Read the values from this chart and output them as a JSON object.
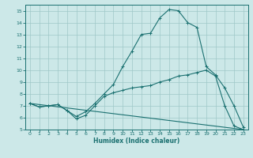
{
  "xlabel": "Humidex (Indice chaleur)",
  "xlim": [
    -0.5,
    23.5
  ],
  "ylim": [
    5,
    15.5
  ],
  "xticks": [
    0,
    1,
    2,
    3,
    4,
    5,
    6,
    7,
    8,
    9,
    10,
    11,
    12,
    13,
    14,
    15,
    16,
    17,
    18,
    19,
    20,
    21,
    22,
    23
  ],
  "yticks": [
    5,
    6,
    7,
    8,
    9,
    10,
    11,
    12,
    13,
    14,
    15
  ],
  "bg_color": "#cce8e8",
  "line_color": "#1a7070",
  "grid_color": "#9fc8c8",
  "line1_x": [
    0,
    1,
    2,
    3,
    4,
    5,
    6,
    7,
    8,
    9,
    10,
    11,
    12,
    13,
    14,
    15,
    16,
    17,
    18,
    19,
    20,
    21,
    22,
    23
  ],
  "line1_y": [
    7.2,
    6.9,
    7.0,
    7.1,
    6.6,
    6.1,
    6.5,
    7.2,
    8.0,
    8.8,
    10.3,
    11.6,
    13.0,
    13.1,
    14.4,
    15.1,
    15.0,
    14.0,
    13.6,
    10.3,
    9.6,
    8.5,
    7.0,
    5.2
  ],
  "line2_x": [
    0,
    1,
    2,
    3,
    4,
    5,
    6,
    7,
    8,
    9,
    10,
    11,
    12,
    13,
    14,
    15,
    16,
    17,
    18,
    19,
    20,
    21,
    22,
    23
  ],
  "line2_y": [
    7.2,
    6.9,
    7.0,
    7.1,
    6.6,
    5.9,
    6.2,
    7.0,
    7.8,
    8.1,
    8.3,
    8.5,
    8.6,
    8.7,
    9.0,
    9.2,
    9.5,
    9.6,
    9.8,
    10.0,
    9.5,
    7.0,
    5.3,
    5.0
  ],
  "line3_x": [
    0,
    23
  ],
  "line3_y": [
    7.2,
    5.0
  ],
  "marker": "+"
}
